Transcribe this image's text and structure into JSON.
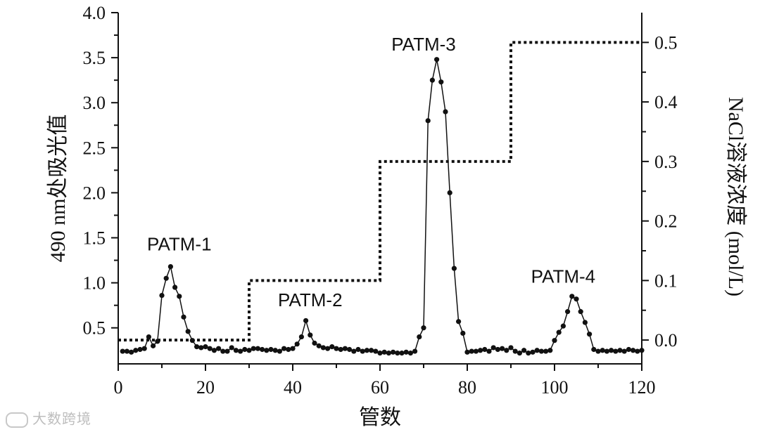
{
  "chart_data": {
    "type": "line",
    "title": "",
    "xlabel": "管数",
    "ylabel": "490 nm处吸光值",
    "y2label": "NaCl溶液浓度 (mol/L)",
    "xlim": [
      0,
      120
    ],
    "ylim": [
      0.1,
      4.0
    ],
    "y2lim": [
      -0.04,
      0.55
    ],
    "x_ticks": [
      0,
      20,
      40,
      60,
      80,
      100,
      120
    ],
    "y_ticks": [
      0.5,
      1.0,
      1.5,
      2.0,
      2.5,
      3.0,
      3.5,
      4.0
    ],
    "y2_ticks": [
      0.0,
      0.1,
      0.2,
      0.3,
      0.4,
      0.5
    ],
    "grid": false,
    "legend": "none",
    "series": [
      {
        "axis": "left",
        "style": "line-with-markers",
        "x": [
          1,
          2,
          3,
          4,
          5,
          6,
          7,
          8,
          9,
          10,
          11,
          12,
          13,
          14,
          15,
          16,
          17,
          18,
          19,
          20,
          21,
          22,
          23,
          24,
          25,
          26,
          27,
          28,
          29,
          30,
          31,
          32,
          33,
          34,
          35,
          36,
          37,
          38,
          39,
          40,
          41,
          42,
          43,
          44,
          45,
          46,
          47,
          48,
          49,
          50,
          51,
          52,
          53,
          54,
          55,
          56,
          57,
          58,
          59,
          60,
          61,
          62,
          63,
          64,
          65,
          66,
          67,
          68,
          69,
          70,
          71,
          72,
          73,
          74,
          75,
          76,
          77,
          78,
          79,
          80,
          81,
          82,
          83,
          84,
          85,
          86,
          87,
          88,
          89,
          90,
          91,
          92,
          93,
          94,
          95,
          96,
          97,
          98,
          99,
          100,
          101,
          102,
          103,
          104,
          105,
          106,
          107,
          108,
          109,
          110,
          111,
          112,
          113,
          114,
          115,
          116,
          117,
          118,
          119,
          120
        ],
        "y": [
          0.24,
          0.24,
          0.23,
          0.25,
          0.26,
          0.27,
          0.4,
          0.3,
          0.35,
          0.86,
          1.05,
          1.18,
          0.95,
          0.85,
          0.62,
          0.46,
          0.36,
          0.29,
          0.28,
          0.29,
          0.27,
          0.25,
          0.27,
          0.24,
          0.24,
          0.28,
          0.25,
          0.24,
          0.26,
          0.25,
          0.27,
          0.27,
          0.26,
          0.25,
          0.26,
          0.25,
          0.24,
          0.27,
          0.26,
          0.27,
          0.32,
          0.4,
          0.58,
          0.42,
          0.33,
          0.3,
          0.28,
          0.27,
          0.29,
          0.27,
          0.26,
          0.27,
          0.26,
          0.24,
          0.26,
          0.24,
          0.25,
          0.25,
          0.24,
          0.22,
          0.23,
          0.22,
          0.23,
          0.22,
          0.22,
          0.23,
          0.22,
          0.24,
          0.4,
          0.5,
          2.8,
          3.25,
          3.48,
          3.23,
          2.9,
          2.0,
          1.16,
          0.57,
          0.44,
          0.23,
          0.24,
          0.24,
          0.25,
          0.26,
          0.24,
          0.28,
          0.26,
          0.27,
          0.25,
          0.28,
          0.24,
          0.22,
          0.25,
          0.22,
          0.23,
          0.25,
          0.24,
          0.24,
          0.25,
          0.36,
          0.45,
          0.52,
          0.68,
          0.85,
          0.82,
          0.68,
          0.56,
          0.43,
          0.26,
          0.24,
          0.25,
          0.24,
          0.25,
          0.24,
          0.25,
          0.24,
          0.26,
          0.25,
          0.24,
          0.25
        ]
      },
      {
        "axis": "right",
        "style": "dotted-step",
        "x": [
          0,
          30,
          30,
          60,
          60,
          90,
          90,
          120
        ],
        "y": [
          0.0,
          0.0,
          0.1,
          0.1,
          0.3,
          0.3,
          0.5,
          0.5
        ]
      }
    ],
    "annotations": [
      {
        "text": "PATM-1",
        "x": 14,
        "y": 1.36
      },
      {
        "text": "PATM-2",
        "x": 44,
        "y": 0.74
      },
      {
        "text": "PATM-3",
        "x": 70,
        "y": 3.58
      },
      {
        "text": "PATM-4",
        "x": 102,
        "y": 1.0
      }
    ]
  },
  "watermark": "大数跨境"
}
